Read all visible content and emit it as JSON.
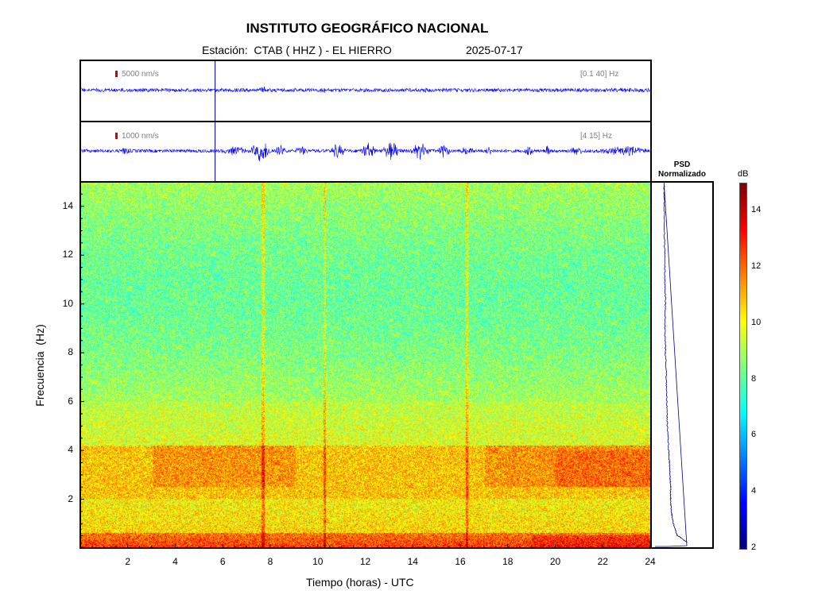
{
  "header": {
    "title": "INSTITUTO GEOGRÁFICO NACIONAL",
    "station": "Estación:  CTAB ( HHZ ) - EL HIERRO",
    "date": "2025-07-17"
  },
  "traces": [
    {
      "scale_label": "5000 nm/s",
      "band_label": "[0.1 40] Hz"
    },
    {
      "scale_label": "1000 nm/s",
      "band_label": "[4 15] Hz"
    }
  ],
  "psd": {
    "title_line1": "PSD",
    "title_line2": "Normalizado"
  },
  "colorbar": {
    "unit": "dB",
    "ticks": [
      "14",
      "12",
      "10",
      "8",
      "6",
      "4",
      "2"
    ],
    "range": [
      2,
      15
    ],
    "colormap": "jet"
  },
  "chart_data": {
    "type": "heatmap",
    "title": "INSTITUTO GEOGRÁFICO NACIONAL",
    "xlabel": "Tiempo (horas) - UTC",
    "ylabel": "Frecuencia  (Hz)",
    "xlim": [
      0,
      24
    ],
    "ylim": [
      0,
      15
    ],
    "x_ticks": [
      "2",
      "4",
      "6",
      "8",
      "10",
      "12",
      "14",
      "16",
      "18",
      "20",
      "22",
      "24"
    ],
    "y_ticks": [
      "2",
      "4",
      "6",
      "8",
      "10",
      "12",
      "14"
    ],
    "marker_time_hours": 5.65,
    "vertical_events_hours": [
      7.65,
      10.25,
      16.25
    ],
    "psd_profile": {
      "freq_hz": [
        0.2,
        0.5,
        1,
        1.5,
        2,
        2.5,
        3,
        3.5,
        4,
        5,
        6,
        7,
        8,
        9,
        10,
        11,
        12,
        13,
        14,
        15
      ],
      "normalized": [
        0.38,
        0.22,
        0.16,
        0.13,
        0.12,
        0.12,
        0.11,
        0.1,
        0.09,
        0.07,
        0.06,
        0.05,
        0.04,
        0.03,
        0.04,
        0.03,
        0.03,
        0.02,
        0.02,
        0.02
      ]
    }
  }
}
